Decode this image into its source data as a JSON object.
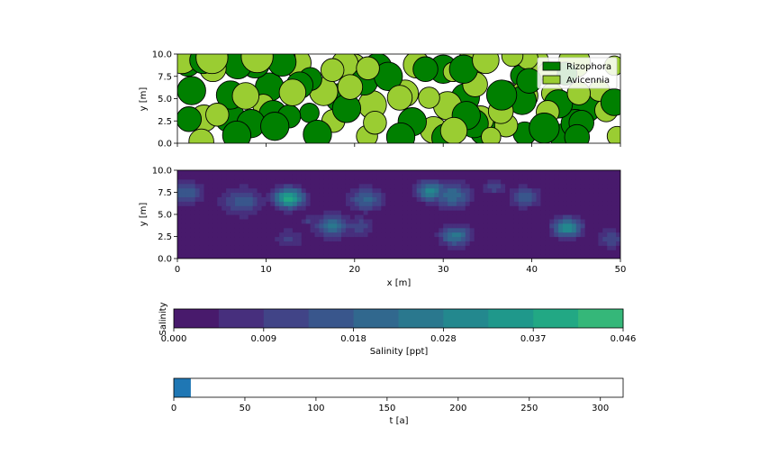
{
  "chart_data": [
    {
      "type": "scatter",
      "title": "",
      "ylabel": "y [m]",
      "xlim": [
        0,
        50
      ],
      "ylim": [
        0,
        10
      ],
      "yticks": [
        "0.0",
        "2.5",
        "5.0",
        "7.5",
        "10.0"
      ],
      "legend_position": "top-right",
      "series": [
        {
          "name": "Rizophora",
          "color": "#008000",
          "points": [
            [
              1.2,
              8.9,
              1.4
            ],
            [
              2.9,
              9.3,
              1.5
            ],
            [
              1.6,
              5.9,
              1.6
            ],
            [
              1.3,
              2.7,
              1.4
            ],
            [
              6.8,
              8.8,
              1.6
            ],
            [
              8.8,
              8.9,
              1.6
            ],
            [
              11.8,
              9.1,
              1.6
            ],
            [
              6.0,
              5.4,
              1.6
            ],
            [
              10.4,
              6.3,
              1.6
            ],
            [
              13.8,
              6.5,
              1.5
            ],
            [
              15.0,
              7.2,
              1.3
            ],
            [
              5.9,
              2.9,
              1.7
            ],
            [
              8.3,
              2.2,
              1.6
            ],
            [
              10.8,
              3.2,
              1.6
            ],
            [
              11.0,
              1.9,
              1.6
            ],
            [
              12.6,
              3.0,
              1.3
            ],
            [
              14.9,
              3.4,
              1.1
            ],
            [
              6.7,
              0.9,
              1.6
            ],
            [
              15.8,
              1.0,
              1.6
            ],
            [
              18.3,
              5.1,
              1.6
            ],
            [
              19.1,
              3.9,
              1.6
            ],
            [
              21.1,
              6.9,
              1.5
            ],
            [
              22.6,
              8.5,
              1.6
            ],
            [
              23.8,
              7.5,
              1.6
            ],
            [
              26.5,
              2.4,
              1.6
            ],
            [
              25.2,
              0.7,
              1.6
            ],
            [
              28.0,
              8.3,
              1.4
            ],
            [
              30.0,
              8.3,
              1.6
            ],
            [
              32.3,
              8.3,
              1.6
            ],
            [
              33.5,
              2.2,
              1.6
            ],
            [
              32.5,
              5.1,
              1.6
            ],
            [
              32.6,
              3.1,
              1.6
            ],
            [
              30.3,
              0.6,
              1.6
            ],
            [
              34.6,
              1.4,
              1.6
            ],
            [
              36.6,
              5.4,
              1.7
            ],
            [
              38.8,
              7.6,
              1.2
            ],
            [
              39.7,
              7.0,
              1.4
            ],
            [
              38.9,
              4.8,
              1.6
            ],
            [
              39.2,
              1.1,
              1.3
            ],
            [
              41.4,
              1.7,
              1.7
            ],
            [
              43.0,
              4.4,
              1.6
            ],
            [
              43.6,
              0.7,
              1.5
            ],
            [
              45.1,
              0.7,
              1.4
            ],
            [
              45.6,
              2.3,
              1.4
            ],
            [
              46.1,
              4.0,
              1.7
            ],
            [
              43.8,
              7.8,
              1.3
            ],
            [
              44.9,
              2.2,
              1.6
            ],
            [
              49.3,
              4.6,
              1.5
            ]
          ]
        },
        {
          "name": "Avicennia",
          "color": "#9acd32",
          "points": [
            [
              0.5,
              9.6,
              1.8
            ],
            [
              3.9,
              9.6,
              1.8
            ],
            [
              4.0,
              8.4,
              1.5
            ],
            [
              5.5,
              9.7,
              1.4
            ],
            [
              9.0,
              9.7,
              1.8
            ],
            [
              12.0,
              9.6,
              1.3
            ],
            [
              13.5,
              9.0,
              1.6
            ],
            [
              17.5,
              8.2,
              1.3
            ],
            [
              18.9,
              8.9,
              1.5
            ],
            [
              20.0,
              8.7,
              1.3
            ],
            [
              21.5,
              8.4,
              1.3
            ],
            [
              16.5,
              5.8,
              1.6
            ],
            [
              19.5,
              6.3,
              1.4
            ],
            [
              4.5,
              3.2,
              1.3
            ],
            [
              3.0,
              2.8,
              1.5
            ],
            [
              2.7,
              0.2,
              1.4
            ],
            [
              7.7,
              5.3,
              1.5
            ],
            [
              9.7,
              4.3,
              1.2
            ],
            [
              13.0,
              5.7,
              1.5
            ],
            [
              17.6,
              2.5,
              1.3
            ],
            [
              22.0,
              4.3,
              1.6
            ],
            [
              22.3,
              2.3,
              1.3
            ],
            [
              21.4,
              0.8,
              1.2
            ],
            [
              25.1,
              5.1,
              1.4
            ],
            [
              25.7,
              5.6,
              1.5
            ],
            [
              27.0,
              8.8,
              1.5
            ],
            [
              28.4,
              5.1,
              1.2
            ],
            [
              30.5,
              4.2,
              1.6
            ],
            [
              28.9,
              1.5,
              1.5
            ],
            [
              31.2,
              1.4,
              1.5
            ],
            [
              31.1,
              8.0,
              1.1
            ],
            [
              33.2,
              9.0,
              1.6
            ],
            [
              33.6,
              6.6,
              1.4
            ],
            [
              34.2,
              2.7,
              1.5
            ],
            [
              34.8,
              9.3,
              1.5
            ],
            [
              36.5,
              3.6,
              1.4
            ],
            [
              37.1,
              2.0,
              1.3
            ],
            [
              37.8,
              9.8,
              1.2
            ],
            [
              39.5,
              9.5,
              1.2
            ],
            [
              40.5,
              9.2,
              1.4
            ],
            [
              41.8,
              3.5,
              1.3
            ],
            [
              39.1,
              5.3,
              1.6
            ],
            [
              42.3,
              5.6,
              1.2
            ],
            [
              41.8,
              8.0,
              1.1
            ],
            [
              44.8,
              9.1,
              1.8
            ],
            [
              45.3,
              5.6,
              1.3
            ],
            [
              47.6,
              5.9,
              1.2
            ],
            [
              48.4,
              3.7,
              1.3
            ],
            [
              49.6,
              0.8,
              1.1
            ],
            [
              49.3,
              8.7,
              1.1
            ],
            [
              37.1,
              5.9,
              1.1
            ],
            [
              35.4,
              0.7,
              1.1
            ]
          ]
        }
      ]
    },
    {
      "type": "heatmap",
      "title": "",
      "xlabel": "x [m]",
      "ylabel": "y [m]",
      "xlim": [
        0,
        50
      ],
      "ylim": [
        0,
        10
      ],
      "xticks": [
        "0",
        "10",
        "20",
        "30",
        "40",
        "50"
      ],
      "yticks": [
        "0.0",
        "2.5",
        "5.0",
        "7.5",
        "10.0"
      ],
      "levels": 10,
      "value_range": [
        0,
        0.046
      ],
      "hotspots": [
        [
          1.0,
          7.5,
          1.8,
          0.017
        ],
        [
          7.3,
          6.5,
          2.2,
          0.017
        ],
        [
          12.6,
          6.9,
          1.6,
          0.04
        ],
        [
          12.7,
          2.3,
          1.6,
          0.01
        ],
        [
          14.8,
          4.4,
          0.7,
          0.012
        ],
        [
          17.5,
          3.8,
          1.8,
          0.024
        ],
        [
          21.3,
          6.8,
          1.8,
          0.02
        ],
        [
          20.6,
          3.7,
          1.6,
          0.012
        ],
        [
          28.6,
          7.7,
          1.6,
          0.029
        ],
        [
          31.0,
          7.2,
          2.0,
          0.022
        ],
        [
          31.4,
          2.6,
          1.6,
          0.025
        ],
        [
          35.8,
          8.1,
          1.2,
          0.012
        ],
        [
          39.2,
          7.0,
          1.6,
          0.017
        ],
        [
          44.0,
          3.6,
          1.5,
          0.033
        ],
        [
          48.9,
          2.3,
          1.5,
          0.013
        ]
      ]
    },
    {
      "type": "colorbar",
      "ylabel": "Salinity",
      "xlabel": "Salinity [ppt]",
      "ticks": [
        "0.000",
        "0.009",
        "0.018",
        "0.028",
        "0.037",
        "0.046"
      ],
      "colors": [
        "#481a6c",
        "#472f7d",
        "#414487",
        "#39568c",
        "#31688e",
        "#2a788e",
        "#23888e",
        "#1f988b",
        "#22a884",
        "#35b779"
      ]
    },
    {
      "type": "bar",
      "xlabel": "t [a]",
      "xlim": [
        0,
        316
      ],
      "xticks": [
        "0",
        "50",
        "100",
        "150",
        "200",
        "250",
        "300"
      ],
      "progress_start": 0,
      "progress_end": 12,
      "color": "#1f77b4"
    }
  ]
}
